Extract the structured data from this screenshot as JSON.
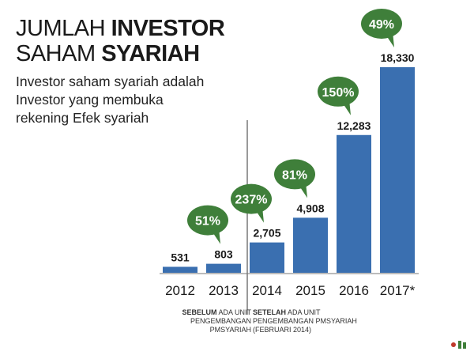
{
  "title": {
    "line1_light": "JUMLAH ",
    "line1_bold": "INVESTOR",
    "line2_light": "SAHAM ",
    "line2_bold": "SYARIAH"
  },
  "subtitle": [
    "Investor saham syariah adalah",
    "Investor yang membuka",
    "rekening Efek syariah"
  ],
  "notes": {
    "before_bold": "SEBELUM",
    "before_line1_rest": " ADA UNIT",
    "before_line2": "PENGEMBANGAN PMSYARIAH",
    "after_bold": "SETELAH",
    "after_line1_rest": " ADA UNIT",
    "after_line2": "PENGEMBANGAN PMSYARIAH",
    "after_line3": "(FEBRUARI 2014)"
  },
  "colors": {
    "bar": "#3a6fb0",
    "bubble": "#3f7f3a",
    "bubble_text": "#ffffff",
    "divider": "#333333"
  },
  "chart_data": {
    "type": "bar",
    "categories": [
      "2012",
      "2013",
      "2014",
      "2015",
      "2016",
      "2017*"
    ],
    "values": [
      531,
      803,
      2705,
      4908,
      12283,
      18330
    ],
    "value_labels": [
      "531",
      "803",
      "2,705",
      "4,908",
      "12,283",
      "18,330"
    ],
    "growth_labels": [
      "",
      "51%",
      "237%",
      "81%",
      "150%",
      "49%"
    ],
    "ylim": [
      0,
      18330
    ],
    "grid": false,
    "legend": "none"
  }
}
